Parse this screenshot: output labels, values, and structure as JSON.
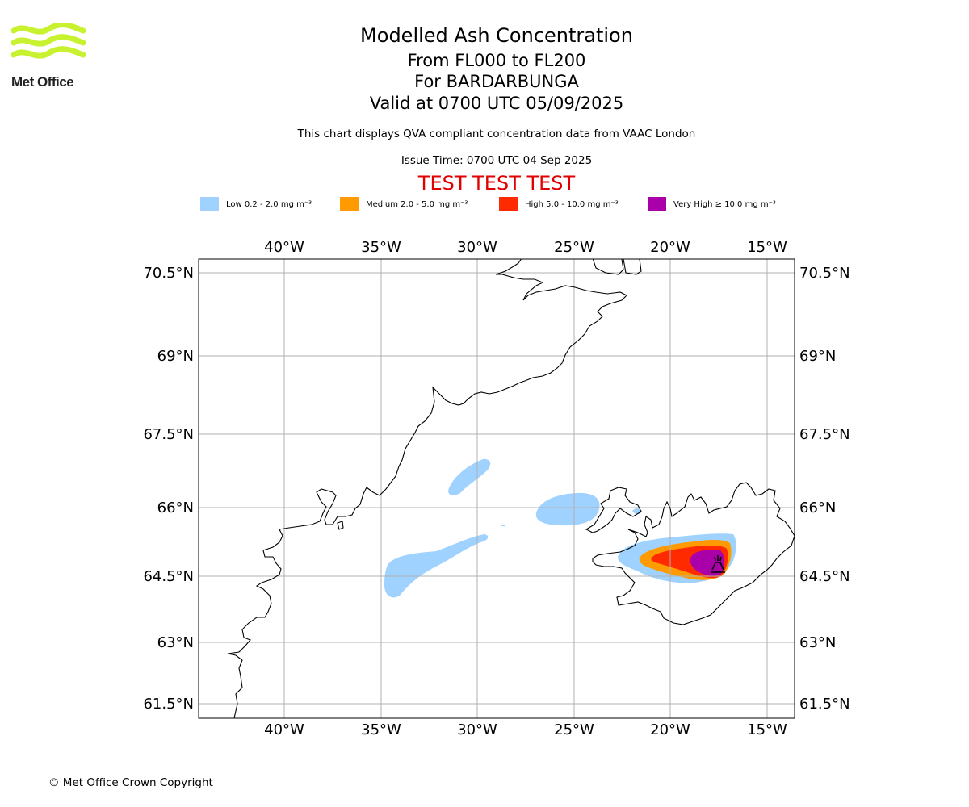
{
  "logo": {
    "text": "Met Office"
  },
  "header": {
    "title": "Modelled Ash Concentration",
    "levels": "From FL000 to FL200",
    "volcano": "For BARDARBUNGA",
    "valid": "Valid at 0700 UTC 05/09/2025",
    "description": "This chart displays QVA compliant concentration data from VAAC London",
    "issue_time": "Issue Time: 0700 UTC 04 Sep 2025",
    "test_banner": "TEST TEST TEST",
    "test_color": "#e00000"
  },
  "legend": [
    {
      "label": "Low 0.2 - 2.0 mg m⁻³",
      "color": "#a0d2ff"
    },
    {
      "label": "Medium 2.0 - 5.0 mg m⁻³",
      "color": "#ff9a00"
    },
    {
      "label": "High 5.0 - 10.0 mg m⁻³",
      "color": "#ff2a00"
    },
    {
      "label": "Very High  ≥  10.0 mg m⁻³",
      "color": "#aa00aa"
    }
  ],
  "map": {
    "lon_labels": [
      "40°W",
      "35°W",
      "30°W",
      "25°W",
      "20°W",
      "15°W"
    ],
    "lat_labels": [
      "70.5°N",
      "69°N",
      "67.5°N",
      "66°N",
      "64.5°N",
      "63°N",
      "61.5°N"
    ],
    "volcano_marker": "volcano-icon",
    "gridlines": true
  },
  "footer": {
    "copyright": "© Met Office Crown Copyright"
  }
}
